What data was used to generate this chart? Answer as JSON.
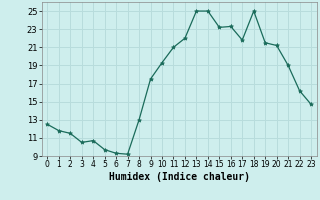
{
  "x": [
    0,
    1,
    2,
    3,
    4,
    5,
    6,
    7,
    8,
    9,
    10,
    11,
    12,
    13,
    14,
    15,
    16,
    17,
    18,
    19,
    20,
    21,
    22,
    23
  ],
  "y": [
    12.5,
    11.8,
    11.5,
    10.5,
    10.7,
    9.7,
    9.3,
    9.2,
    13.0,
    17.5,
    19.3,
    21.0,
    22.0,
    25.0,
    25.0,
    23.2,
    23.3,
    21.8,
    25.0,
    21.5,
    21.2,
    19.0,
    16.2,
    14.7
  ],
  "xlabel": "Humidex (Indice chaleur)",
  "ylim": [
    9,
    26
  ],
  "xlim": [
    -0.5,
    23.5
  ],
  "yticks": [
    9,
    11,
    13,
    15,
    17,
    19,
    21,
    23,
    25
  ],
  "xticks": [
    0,
    1,
    2,
    3,
    4,
    5,
    6,
    7,
    8,
    9,
    10,
    11,
    12,
    13,
    14,
    15,
    16,
    17,
    18,
    19,
    20,
    21,
    22,
    23
  ],
  "line_color": "#1a6b5a",
  "marker": "*",
  "marker_size": 3,
  "bg_color": "#ceeeed",
  "grid_color": "#b8dcdc",
  "fig_bg": "#ceeeed"
}
